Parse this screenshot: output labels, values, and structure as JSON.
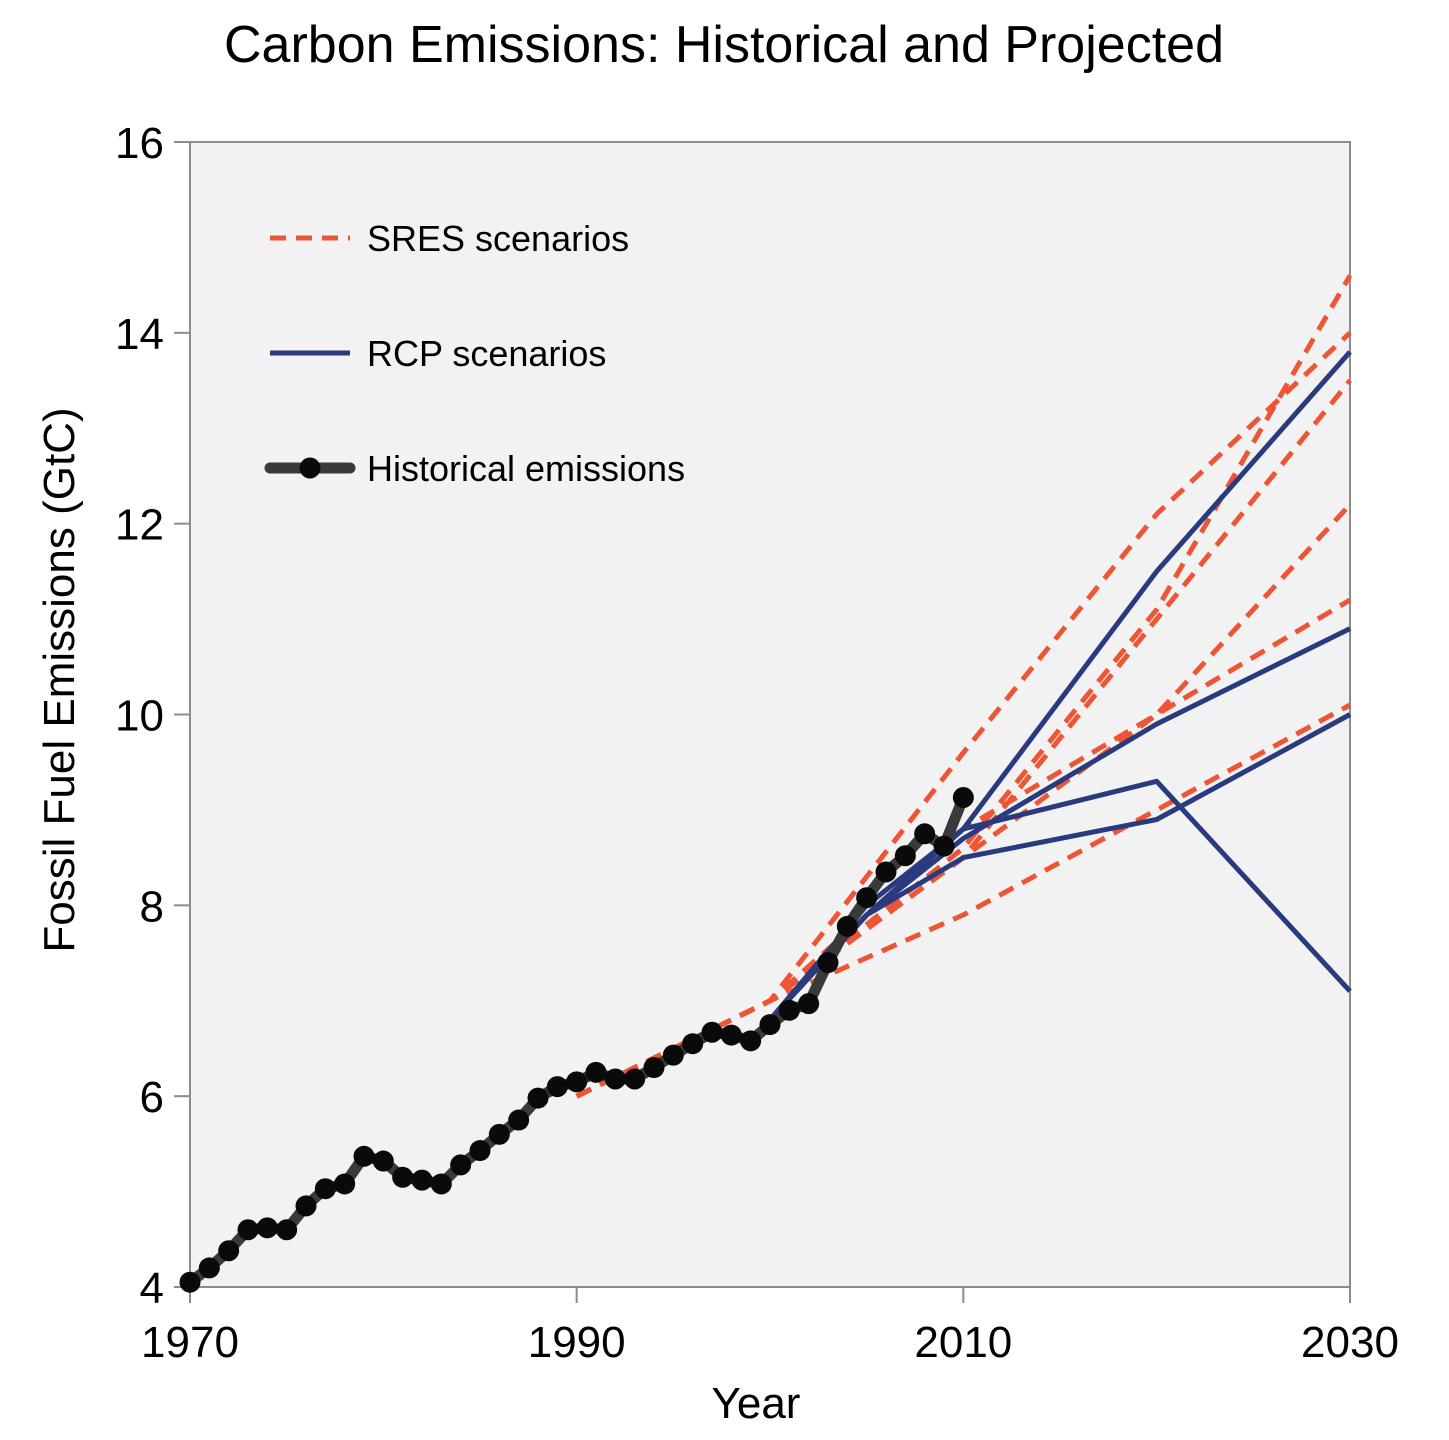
{
  "chart_data": {
    "type": "line",
    "title": "Carbon Emissions: Historical and Projected",
    "xlabel": "Year",
    "ylabel": "Fossil Fuel Emissions (GtC)",
    "xlim": [
      1970,
      2030
    ],
    "ylim": [
      4,
      16
    ],
    "xticks": [
      1970,
      1990,
      2010,
      2030
    ],
    "yticks": [
      4,
      6,
      8,
      10,
      12,
      14,
      16
    ],
    "grid": false,
    "background": "#f2f2f2",
    "legend_position": "top-left",
    "legend": [
      {
        "label": "SRES scenarios",
        "style": "dashed",
        "color": "#ee5535"
      },
      {
        "label": "RCP scenarios",
        "style": "solid",
        "color": "#2a3a7e"
      },
      {
        "label": "Historical emissions",
        "style": "solid-markers",
        "color": "#3a3a3a"
      }
    ],
    "series": [
      {
        "group": "SRES scenarios",
        "color": "#ee5535",
        "style": "dashed",
        "lines": [
          {
            "x": [
              1990,
              2000,
              2010,
              2020,
              2030
            ],
            "y": [
              6.0,
              7.0,
              9.6,
              12.1,
              14.0
            ]
          },
          {
            "x": [
              1990,
              2000,
              2010,
              2020,
              2030
            ],
            "y": [
              6.0,
              7.0,
              8.6,
              11.1,
              14.6
            ]
          },
          {
            "x": [
              1990,
              2000,
              2010,
              2020,
              2030
            ],
            "y": [
              6.0,
              7.0,
              8.5,
              11.0,
              13.5
            ]
          },
          {
            "x": [
              1990,
              2000,
              2010,
              2020,
              2030
            ],
            "y": [
              6.0,
              7.0,
              8.8,
              10.0,
              12.2
            ]
          },
          {
            "x": [
              1990,
              2000,
              2010,
              2020,
              2030
            ],
            "y": [
              6.0,
              7.0,
              8.5,
              10.0,
              11.2
            ]
          },
          {
            "x": [
              1990,
              2000,
              2010,
              2020,
              2030
            ],
            "y": [
              6.0,
              7.0,
              7.9,
              9.0,
              10.1
            ]
          }
        ]
      },
      {
        "group": "RCP scenarios",
        "color": "#2a3a7e",
        "style": "solid",
        "lines": [
          {
            "x": [
              2000,
              2005,
              2010,
              2020,
              2030
            ],
            "y": [
              6.8,
              8.0,
              8.8,
              11.5,
              13.8
            ]
          },
          {
            "x": [
              2000,
              2005,
              2010,
              2020,
              2030
            ],
            "y": [
              6.8,
              7.9,
              8.7,
              9.9,
              10.9
            ]
          },
          {
            "x": [
              2000,
              2005,
              2010,
              2020,
              2030
            ],
            "y": [
              6.8,
              7.9,
              8.8,
              9.3,
              7.1
            ]
          },
          {
            "x": [
              2000,
              2005,
              2010,
              2020,
              2030
            ],
            "y": [
              6.8,
              7.9,
              8.5,
              8.9,
              10.0
            ]
          }
        ]
      },
      {
        "group": "Historical emissions",
        "color": "#3a3a3a",
        "style": "solid-markers",
        "x": [
          1970,
          1971,
          1972,
          1973,
          1974,
          1975,
          1976,
          1977,
          1978,
          1979,
          1980,
          1981,
          1982,
          1983,
          1984,
          1985,
          1986,
          1987,
          1988,
          1989,
          1990,
          1991,
          1992,
          1993,
          1994,
          1995,
          1996,
          1997,
          1998,
          1999,
          2000,
          2001,
          2002,
          2003,
          2004,
          2005,
          2006,
          2007,
          2008,
          2009,
          2010
        ],
        "y": [
          4.05,
          4.2,
          4.38,
          4.6,
          4.62,
          4.6,
          4.85,
          5.03,
          5.08,
          5.37,
          5.32,
          5.15,
          5.12,
          5.08,
          5.28,
          5.43,
          5.6,
          5.75,
          5.98,
          6.1,
          6.15,
          6.25,
          6.18,
          6.18,
          6.3,
          6.43,
          6.55,
          6.67,
          6.64,
          6.58,
          6.75,
          6.9,
          6.97,
          7.4,
          7.78,
          8.08,
          8.35,
          8.52,
          8.75,
          8.62,
          9.13
        ]
      }
    ]
  }
}
